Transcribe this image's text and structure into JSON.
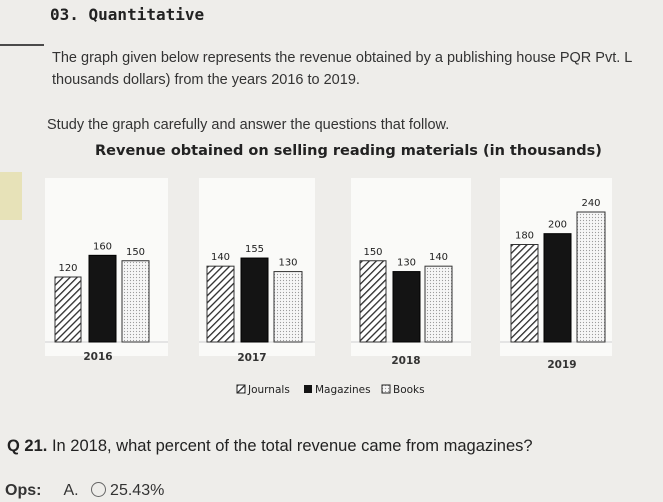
{
  "question_header": "03. Quantitative",
  "intro_line1": "The graph given below represents the revenue obtained by a publishing house PQR Pvt. L",
  "intro_line2": "thousands dollars) from the years 2016 to 2019.",
  "instruction": "Study the graph carefully and answer the questions that follow.",
  "chart_data": {
    "type": "bar",
    "title": "Revenue obtained on selling reading materials (in thousands)",
    "categories": [
      "2016",
      "2017",
      "2018",
      "2019"
    ],
    "series": [
      {
        "name": "Journals",
        "values": [
          120,
          140,
          150,
          180
        ],
        "color": "#ffffff",
        "pattern": "hatch"
      },
      {
        "name": "Magazines",
        "values": [
          160,
          155,
          130,
          200
        ],
        "color": "#141414",
        "pattern": "solid"
      },
      {
        "name": "Books",
        "values": [
          150,
          130,
          140,
          240
        ],
        "color": "#f3f3f3",
        "pattern": "dots"
      }
    ],
    "legend_position": "bottom-center",
    "xlabel": "",
    "ylabel": "",
    "ylim": [
      0,
      240
    ]
  },
  "question": {
    "number": "Q 21.",
    "text": "In 2018, what percent of the total revenue came from magazines?"
  },
  "options": {
    "label": "Ops:",
    "items": [
      {
        "letter": "A.",
        "text": "25.43%"
      }
    ]
  }
}
